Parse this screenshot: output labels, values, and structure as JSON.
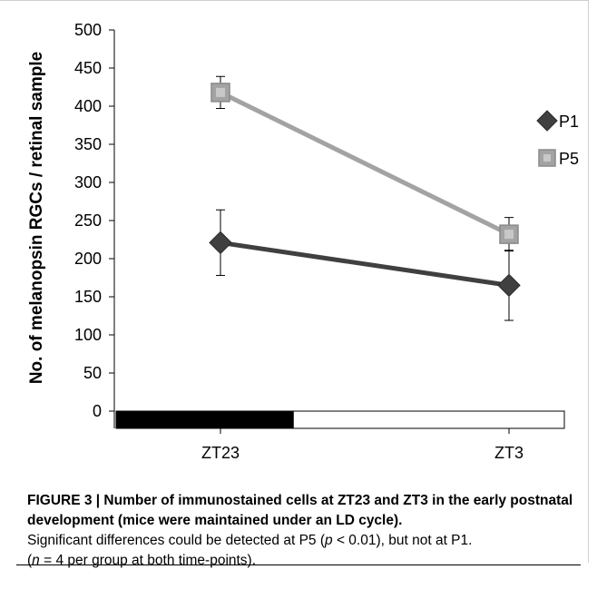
{
  "chart_data": {
    "type": "line",
    "x": [
      "ZT23",
      "ZT3"
    ],
    "xlabel": "",
    "ylabel": "No. of melanopsin RGCs / retinal sample",
    "ylim": [
      0,
      500
    ],
    "yticks": [
      0,
      50,
      100,
      150,
      200,
      250,
      300,
      350,
      400,
      450,
      500
    ],
    "grid": false,
    "legend_position": "right",
    "light_dark_bar": [
      {
        "phase": "dark",
        "color": "#000000"
      },
      {
        "phase": "light",
        "color": "#ffffff"
      }
    ],
    "series": [
      {
        "name": "P1",
        "values": [
          221,
          165
        ],
        "error": [
          43,
          46
        ],
        "color": "#404040",
        "marker": "diamond"
      },
      {
        "name": "P5",
        "values": [
          418,
          232
        ],
        "error": [
          21,
          22
        ],
        "color": "#a3a3a3",
        "marker": "square"
      }
    ]
  },
  "caption": {
    "title": "FIGURE 3 | Number of immunostained cells at ZT23 and ZT3 in the early postnatal development (mice were maintained under an LD cycle).",
    "body_line1_pre": "Significant differences could be detected at P5 (",
    "body_line1_p": "p",
    "body_line1_post": " < 0.01), but not at P1.",
    "body_line2_pre": "(",
    "body_line2_n": "n",
    "body_line2_post": " = 4 per group at both time-points)."
  }
}
